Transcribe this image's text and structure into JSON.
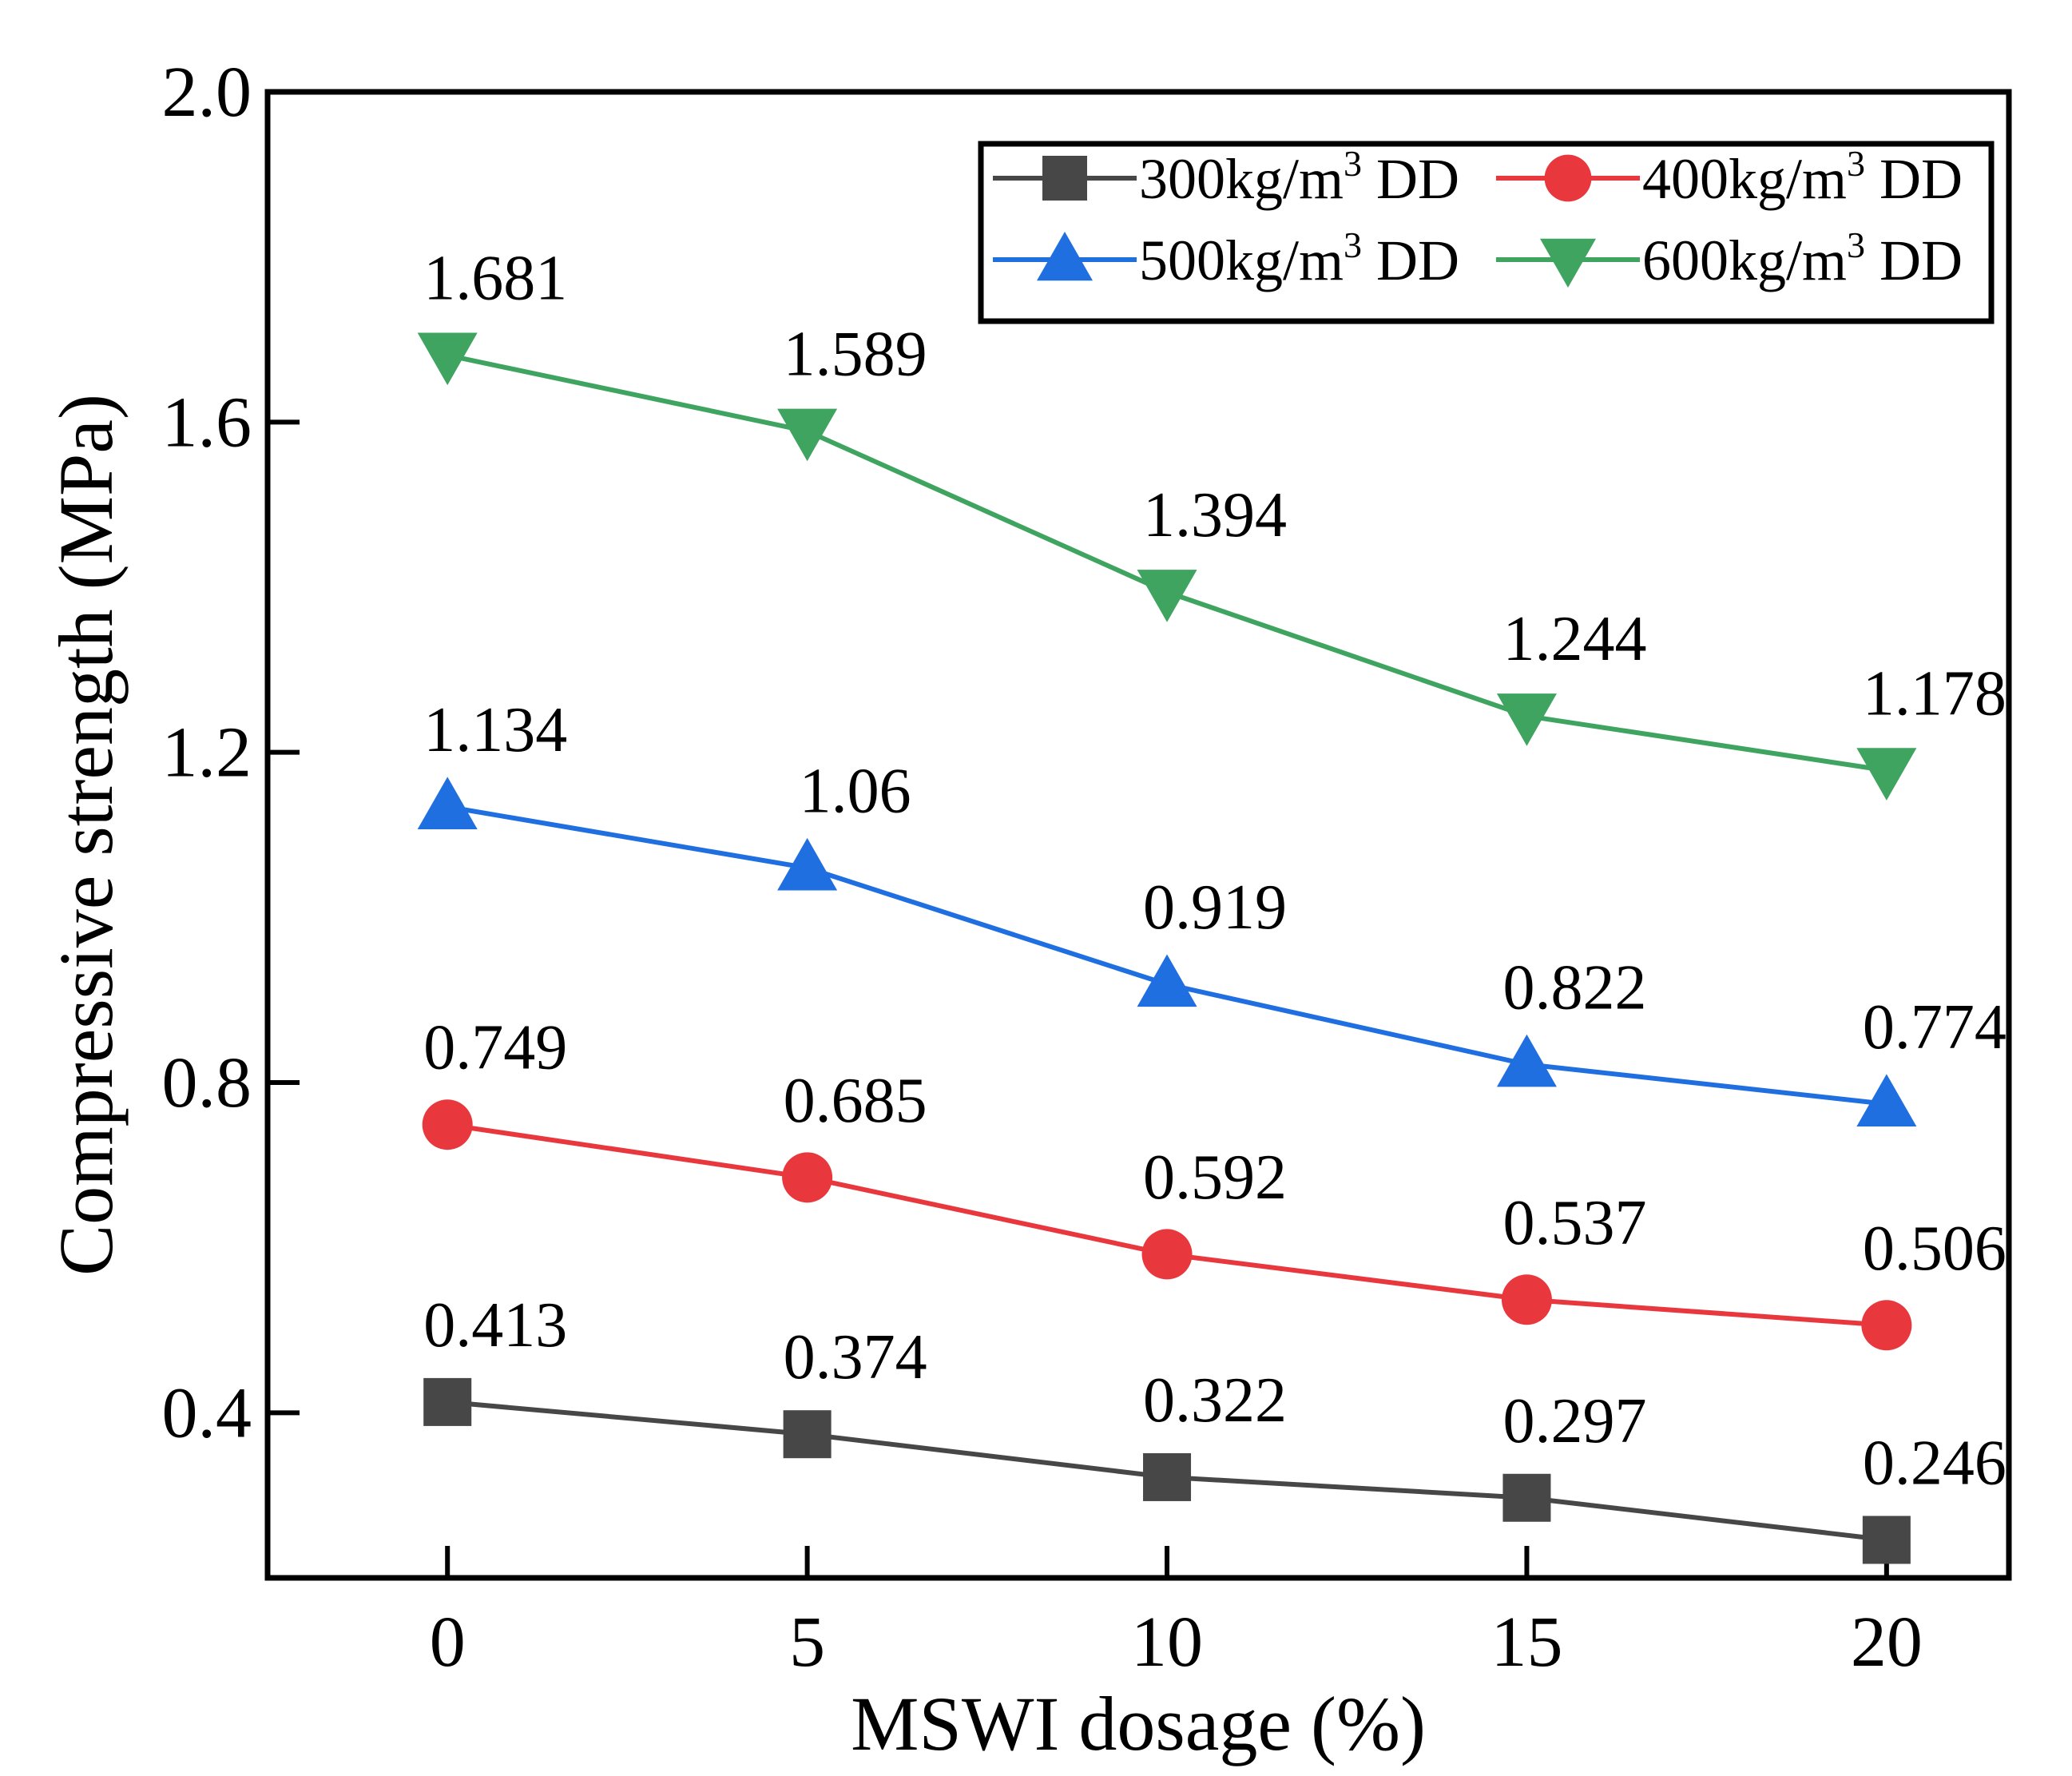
{
  "chart_data": {
    "type": "line",
    "xlabel": "MSWI dosage (%)",
    "ylabel": "Compressive strength (MPa)",
    "xlim": [
      -2.5,
      21.7
    ],
    "ylim": [
      0.2,
      2.0
    ],
    "x": [
      0,
      5,
      10,
      15,
      20
    ],
    "xticks": [
      0,
      5,
      10,
      15,
      20
    ],
    "yticks": [
      0.4,
      0.8,
      1.2,
      1.6,
      2.0
    ],
    "ytick_labels": [
      "0.4",
      "0.8",
      "1.2",
      "1.6",
      "2.0"
    ],
    "grid": false,
    "legend_position": "top-right",
    "series": [
      {
        "name": "300kg/m",
        "name_sup": "3",
        "name_suffix": " DD",
        "color": "#474747",
        "marker": "square",
        "values": [
          0.413,
          0.374,
          0.322,
          0.297,
          0.246
        ],
        "labels": [
          "0.413",
          "0.374",
          "0.322",
          "0.297",
          "0.246"
        ]
      },
      {
        "name": "400kg/m",
        "name_sup": "3",
        "name_suffix": " DD",
        "color": "#e8383d",
        "marker": "circle",
        "values": [
          0.749,
          0.685,
          0.592,
          0.537,
          0.506
        ],
        "labels": [
          "0.749",
          "0.685",
          "0.592",
          "0.537",
          "0.506"
        ]
      },
      {
        "name": "500kg/m",
        "name_sup": "3",
        "name_suffix": " DD",
        "color": "#1f6fe0",
        "marker": "triangle-up",
        "values": [
          1.134,
          1.06,
          0.919,
          0.822,
          0.774
        ],
        "labels": [
          "1.134",
          "1.06",
          "0.919",
          "0.822",
          "0.774"
        ]
      },
      {
        "name": "600kg/m",
        "name_sup": "3",
        "name_suffix": " DD",
        "color": "#3fa45f",
        "marker": "triangle-down",
        "values": [
          1.681,
          1.589,
          1.394,
          1.244,
          1.178
        ],
        "labels": [
          "1.681",
          "1.589",
          "1.394",
          "1.244",
          "1.178"
        ]
      }
    ]
  }
}
